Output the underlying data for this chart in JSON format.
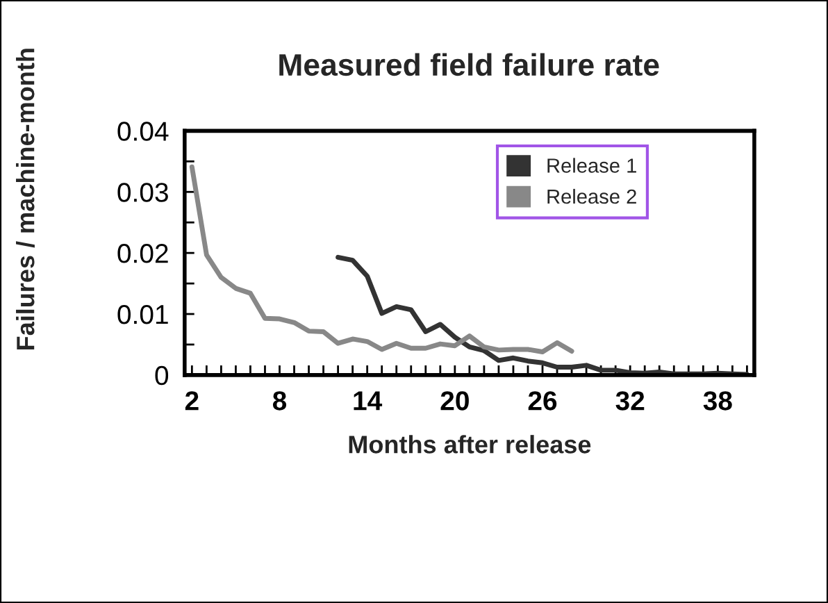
{
  "chart_data": {
    "type": "line",
    "title": "Measured field failure rate",
    "xlabel": "Months after release",
    "ylabel": "Failures / machine-month",
    "series": [
      {
        "name": "Release 1",
        "color": "#333333",
        "x": [
          12,
          13,
          14,
          15,
          16,
          17,
          18,
          19,
          20,
          21,
          22,
          23,
          24,
          25,
          26,
          27,
          28,
          29,
          30,
          31,
          32,
          33,
          34,
          35,
          36,
          37,
          38,
          39,
          40
        ],
        "values": [
          0.0193,
          0.0188,
          0.0162,
          0.0101,
          0.0112,
          0.0107,
          0.0071,
          0.0083,
          0.0062,
          0.0046,
          0.004,
          0.0024,
          0.0028,
          0.0023,
          0.002,
          0.0013,
          0.0013,
          0.0016,
          0.0008,
          0.0008,
          0.0004,
          0.0003,
          0.0005,
          0.0002,
          0.0002,
          0.0002,
          0.0003,
          0.0002,
          0.0001
        ]
      },
      {
        "name": "Release 2",
        "color": "#888888",
        "x": [
          2,
          3,
          4,
          5,
          6,
          7,
          8,
          9,
          10,
          11,
          12,
          13,
          14,
          15,
          16,
          17,
          18,
          19,
          20,
          21,
          22,
          23,
          24,
          25,
          26,
          27,
          28
        ],
        "values": [
          0.0341,
          0.0197,
          0.016,
          0.0142,
          0.0134,
          0.0093,
          0.0092,
          0.0086,
          0.0072,
          0.0071,
          0.0052,
          0.0059,
          0.0055,
          0.0042,
          0.0052,
          0.0044,
          0.0044,
          0.0051,
          0.0048,
          0.0064,
          0.0046,
          0.0041,
          0.0042,
          0.0042,
          0.0038,
          0.0053,
          0.0039
        ]
      }
    ],
    "xlim": [
      1.5,
      40.5
    ],
    "xticks": [
      2,
      {
        "value": 3,
        "label": null
      },
      {
        "value": 4,
        "label": null
      },
      {
        "value": 5,
        "label": null
      },
      {
        "value": 6,
        "label": null
      },
      {
        "value": 7,
        "label": null
      },
      8,
      {
        "value": 9,
        "label": null
      },
      {
        "value": 10,
        "label": null
      },
      {
        "value": 11,
        "label": null
      },
      {
        "value": 12,
        "label": null
      },
      {
        "value": 13,
        "label": null
      },
      14,
      {
        "value": 15,
        "label": null
      },
      {
        "value": 16,
        "label": null
      },
      {
        "value": 17,
        "label": null
      },
      {
        "value": 18,
        "label": null
      },
      {
        "value": 19,
        "label": null
      },
      20,
      {
        "value": 21,
        "label": null
      },
      {
        "value": 22,
        "label": null
      },
      {
        "value": 23,
        "label": null
      },
      {
        "value": 24,
        "label": null
      },
      {
        "value": 25,
        "label": null
      },
      26,
      {
        "value": 27,
        "label": null
      },
      {
        "value": 28,
        "label": null
      },
      {
        "value": 29,
        "label": null
      },
      {
        "value": 30,
        "label": null
      },
      {
        "value": 31,
        "label": null
      },
      32,
      {
        "value": 33,
        "label": null
      },
      {
        "value": 34,
        "label": null
      },
      {
        "value": 35,
        "label": null
      },
      {
        "value": 36,
        "label": null
      },
      {
        "value": 37,
        "label": null
      },
      38,
      {
        "value": 39,
        "label": null
      },
      {
        "value": 40,
        "label": null
      }
    ],
    "ylim": [
      0,
      0.04
    ],
    "yticks": [
      0,
      {
        "value": 0.005,
        "label": null
      },
      0.01,
      {
        "value": 0.015,
        "label": null
      },
      0.02,
      {
        "value": 0.025,
        "label": null
      },
      0.03,
      {
        "value": 0.035,
        "label": null
      },
      0.04
    ],
    "grid": false,
    "legend": "top right",
    "marker": "none",
    "line_style": "solid"
  }
}
